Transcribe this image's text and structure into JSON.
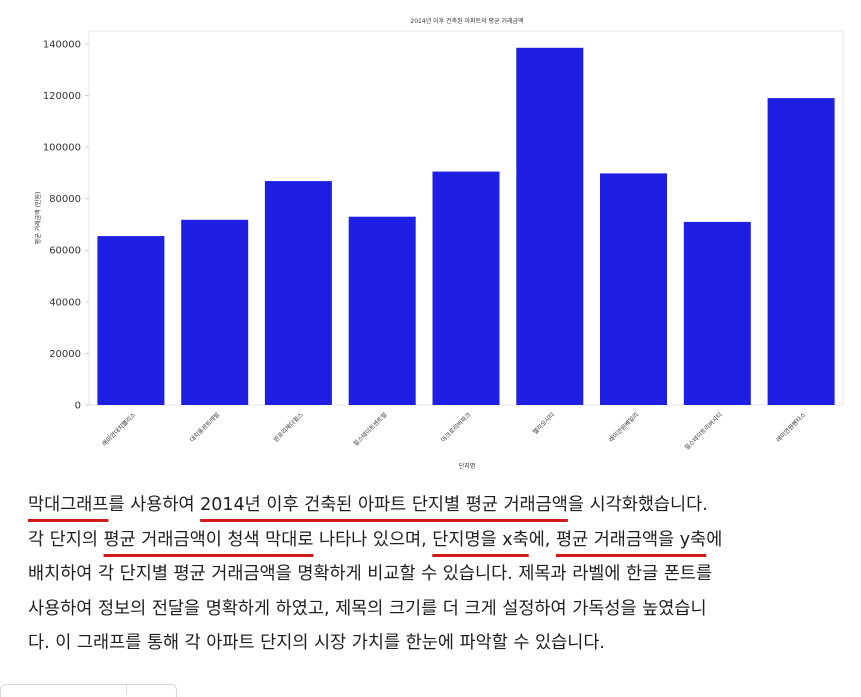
{
  "chart_data": {
    "type": "bar",
    "title": "2014년 이후 건축된 아파트의 평균 거래금액",
    "xlabel": "단지명",
    "ylabel": "평균 거래금액 (만원)",
    "categories": [
      "래미안대치팰리스",
      "대치동센트레빌",
      "반포리체더힐스",
      "힐스테이트센트럴",
      "아크로리버파크",
      "헬리오시티",
      "래미안원베일리",
      "힐스테이트리버시티",
      "래미안원펜타스"
    ],
    "values": [
      65500,
      71800,
      86800,
      73000,
      90500,
      138500,
      89800,
      71000,
      119000
    ],
    "ylim": [
      0,
      145000
    ],
    "yticks": [
      0,
      20000,
      40000,
      60000,
      80000,
      100000,
      120000,
      140000
    ],
    "bar_color": "#1f1fe3",
    "grid": false,
    "legend": "none"
  },
  "caption": {
    "line1": [
      {
        "text": "막대그래프",
        "u": true
      },
      {
        "text": "를 사용하여 ",
        "u": false
      },
      {
        "text": "2014년 이후 건축된 아파트 단지별 평균 거래금액",
        "u": true
      },
      {
        "text": "을 시각화했습니다.",
        "u": false
      }
    ],
    "line2": [
      {
        "text": "각 단지의 ",
        "u": false
      },
      {
        "text": "평균 거래금액이 청색 막대로",
        "u": true
      },
      {
        "text": " 나타나 있으며, ",
        "u": false
      },
      {
        "text": "단지명을 x축",
        "u": true
      },
      {
        "text": "에, ",
        "u": false
      },
      {
        "text": "평균 거래금액을 y축",
        "u": true
      },
      {
        "text": "에",
        "u": false
      }
    ],
    "line3": [
      {
        "text": "배치하여 각 단지별 평균 거래금액을 명확하게 비교할 수 있습니다. 제목과 라벨에 한글 폰트를",
        "u": false
      }
    ],
    "line4": [
      {
        "text": "사용하여 정보의 전달을 명확하게 하였고, 제목의 크기를 더 크게 설정하여 가독성을 높였습니",
        "u": false
      }
    ],
    "line5": [
      {
        "text": "다. 이 그래프를 통해 각 아파트 단지의 시장 가치를 한눈에 파악할 수 있습니다.",
        "u": false
      }
    ]
  }
}
